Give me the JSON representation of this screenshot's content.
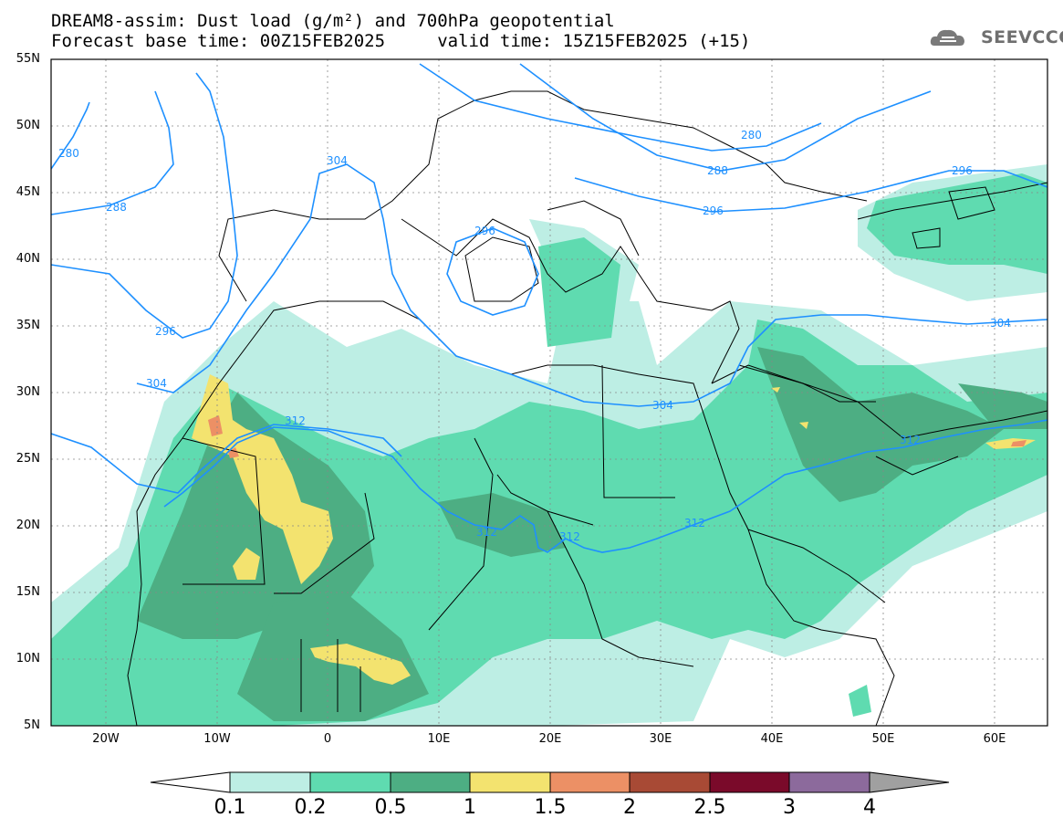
{
  "header": {
    "title_line1": "DREAM8-assim: Dust load (g/m²) and 700hPa geopotential",
    "title_line2": "Forecast base time: 00Z15FEB2025     valid time: 15Z15FEB2025 (+15)",
    "logo_text": "SEEVCCC"
  },
  "axes": {
    "lat_labels": [
      "55N",
      "50N",
      "45N",
      "40N",
      "35N",
      "30N",
      "25N",
      "20N",
      "15N",
      "10N",
      "5N"
    ],
    "lon_labels": [
      "20W",
      "10W",
      "0",
      "10E",
      "20E",
      "30E",
      "40E",
      "50E",
      "60E"
    ]
  },
  "contours": {
    "labels": [
      "280",
      "288",
      "304",
      "296",
      "296",
      "280",
      "288",
      "296",
      "296",
      "304",
      "304",
      "304",
      "312",
      "312",
      "312",
      "312",
      "312"
    ],
    "color": "#1e90ff"
  },
  "colorbar": {
    "labels": [
      "0.1",
      "0.2",
      "0.5",
      "1",
      "1.5",
      "2",
      "2.5",
      "3",
      "4"
    ],
    "colors": [
      "#ffffff",
      "#bdeee4",
      "#5fdbb0",
      "#4dae83",
      "#f3e36f",
      "#ec9065",
      "#a84a35",
      "#7a0a2a",
      "#8c6a9c",
      "#a0a0a0"
    ]
  }
}
